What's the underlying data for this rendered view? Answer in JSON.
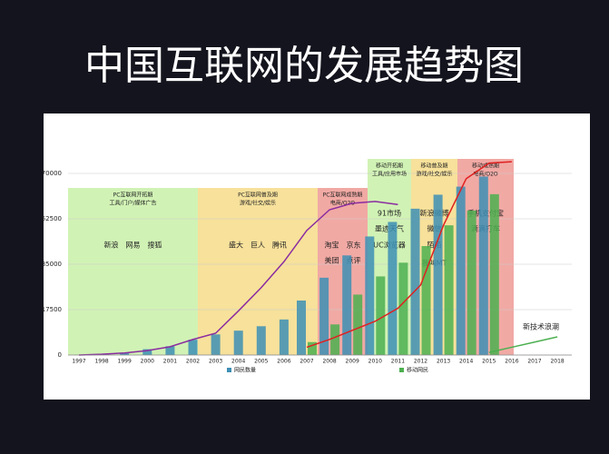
{
  "chart_data": {
    "type": "bar",
    "title": "中国互联网的发展趋势图",
    "categories": [
      "1997",
      "1998",
      "1999",
      "2000",
      "2001",
      "2002",
      "2003",
      "2004",
      "2005",
      "2006",
      "2007",
      "2008",
      "2009",
      "2010",
      "2011",
      "2012",
      "2013",
      "2014",
      "2015",
      "2016",
      "2017",
      "2018"
    ],
    "series": [
      {
        "name": "网民数量",
        "color": "#3d8fb5",
        "values": [
          62,
          210,
          890,
          2250,
          3370,
          5910,
          7950,
          9400,
          11100,
          13700,
          21000,
          29800,
          38400,
          45700,
          51300,
          56400,
          61800,
          64900,
          68800,
          null,
          null,
          null
        ]
      },
      {
        "name": "移动网民",
        "color": "#4cb050",
        "values": [
          null,
          null,
          null,
          null,
          null,
          null,
          null,
          null,
          null,
          null,
          5000,
          11800,
          23300,
          30300,
          35600,
          42000,
          50000,
          55700,
          62000,
          null,
          null,
          null
        ]
      }
    ],
    "lines": [
      {
        "color": "#8a2ca0",
        "values": [
          0,
          300,
          800,
          1700,
          3200,
          6000,
          8400,
          17000,
          26000,
          36000,
          48000,
          56000,
          58500,
          59200,
          58000,
          null,
          null,
          null,
          null,
          null,
          null,
          null
        ]
      },
      {
        "color": "#e02020",
        "values": [
          null,
          null,
          null,
          null,
          null,
          null,
          null,
          null,
          null,
          null,
          3000,
          6000,
          9500,
          13000,
          18000,
          27000,
          50000,
          68000,
          74000,
          74500,
          null,
          null
        ]
      },
      {
        "color": "#4cb050",
        "values": [
          null,
          null,
          null,
          null,
          null,
          null,
          null,
          null,
          null,
          null,
          null,
          null,
          null,
          null,
          null,
          null,
          null,
          null,
          1000,
          3000,
          5000,
          7000
        ]
      }
    ],
    "ylim": [
      0,
      75000
    ],
    "yticks": [
      0,
      17500,
      35000,
      52500,
      70000
    ],
    "phases": [
      {
        "title": "PC互联网开拓期",
        "subtitle": "工具/门户/媒体广告",
        "companies": [
          "新浪　网易　搜狐"
        ]
      },
      {
        "title": "PC互联网普及期",
        "subtitle": "游戏/社交/娱乐",
        "companies": [
          "盛大　巨人　腾讯"
        ]
      },
      {
        "title": "PC互联网成熟期",
        "subtitle": "电商/O2O",
        "companies": [
          "淘宝　京东",
          "美团　点评"
        ]
      },
      {
        "title": "移动开拓期",
        "subtitle": "工具/应用市场",
        "companies": [
          "91市场",
          "墨迹天气",
          "UC浏览器"
        ]
      },
      {
        "title": "移动普及期",
        "subtitle": "游戏/社交/娱乐",
        "companies": [
          "新浪微博",
          "微信",
          "陌陌",
          "我叫MT"
        ]
      },
      {
        "title": "移动成熟期",
        "subtitle": "电商/O2O",
        "companies": [
          "手机支付宝",
          "滴滴打车"
        ]
      }
    ],
    "annotation": "新技术浪潮"
  }
}
